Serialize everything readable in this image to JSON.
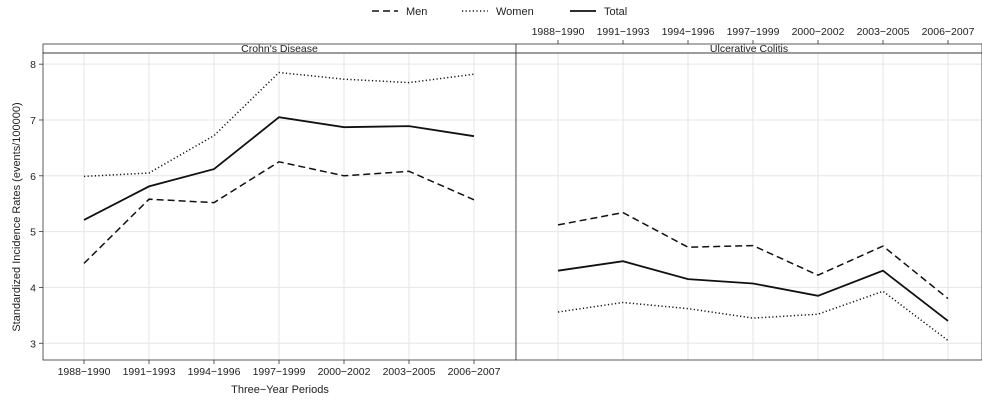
{
  "chart_data": {
    "type": "line",
    "xlabel": "Three−Year Periods",
    "ylabel": "Standardized Incidence Rates (events/100000)",
    "ylim": [
      2.7,
      8.2
    ],
    "yticks": [
      3,
      4,
      5,
      6,
      7,
      8
    ],
    "categories": [
      "1988−1990",
      "1991−1993",
      "1994−1996",
      "1997−1999",
      "2000−2002",
      "2003−2005",
      "2006−2007"
    ],
    "grid": true,
    "legend_position": "top-center",
    "legend": [
      {
        "name": "Men",
        "line_style": "dashed"
      },
      {
        "name": "Women",
        "line_style": "dotted"
      },
      {
        "name": "Total",
        "line_style": "solid"
      }
    ],
    "panels": [
      {
        "title": "Crohn's Disease",
        "series": [
          {
            "name": "Men",
            "line_style": "dashed",
            "values": [
              4.43,
              5.58,
              5.52,
              6.25,
              6.0,
              6.08,
              5.57
            ]
          },
          {
            "name": "Women",
            "line_style": "dotted",
            "values": [
              5.99,
              6.05,
              6.72,
              7.85,
              7.73,
              7.67,
              7.82
            ]
          },
          {
            "name": "Total",
            "line_style": "solid",
            "values": [
              5.21,
              5.81,
              6.12,
              7.05,
              6.87,
              6.89,
              6.71
            ]
          }
        ]
      },
      {
        "title": "Ulcerative Colitis",
        "series": [
          {
            "name": "Men",
            "line_style": "dashed",
            "values": [
              5.12,
              5.34,
              4.72,
              4.75,
              4.22,
              4.74,
              3.8
            ]
          },
          {
            "name": "Women",
            "line_style": "dotted",
            "values": [
              3.56,
              3.73,
              3.62,
              3.45,
              3.52,
              3.93,
              3.05
            ]
          },
          {
            "name": "Total",
            "line_style": "solid",
            "values": [
              4.3,
              4.47,
              4.15,
              4.07,
              3.85,
              4.3,
              3.4
            ]
          }
        ]
      }
    ]
  }
}
